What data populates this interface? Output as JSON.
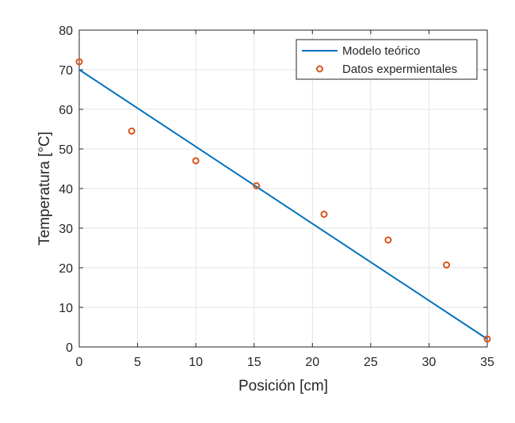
{
  "chart_data": {
    "type": "line",
    "xlabel": "Posición [cm]",
    "ylabel": "Temperatura [°C]",
    "xlim": [
      0,
      35
    ],
    "ylim": [
      0,
      80
    ],
    "xticks": [
      0,
      5,
      10,
      15,
      20,
      25,
      30,
      35
    ],
    "yticks": [
      0,
      10,
      20,
      30,
      40,
      50,
      60,
      70,
      80
    ],
    "grid": true,
    "legend_position": "top-right",
    "series": [
      {
        "name": "Modelo teórico",
        "kind": "line",
        "color": "#0072BD",
        "x": [
          0,
          35
        ],
        "y": [
          70,
          2
        ]
      },
      {
        "name": "Datos expermientales",
        "kind": "scatter",
        "marker": "circle-open",
        "color": "#D95319",
        "x": [
          0,
          4.5,
          10,
          15.2,
          21,
          26.5,
          31.5,
          35
        ],
        "y": [
          72,
          54.5,
          47,
          40.7,
          33.5,
          27,
          20.7,
          2
        ]
      }
    ]
  }
}
